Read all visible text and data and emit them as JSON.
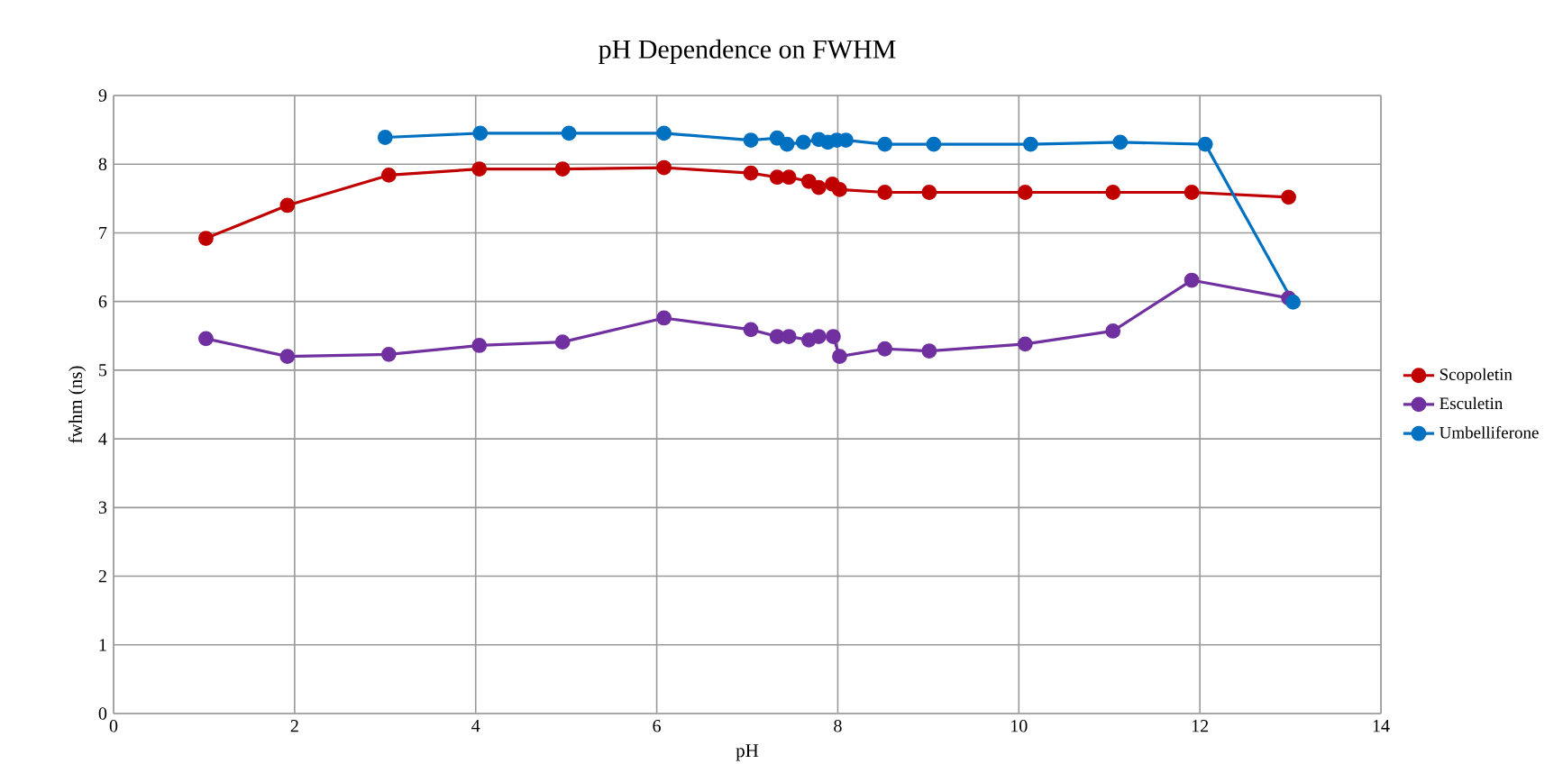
{
  "chart_data": {
    "type": "line",
    "title": "pH Dependence on FWHM",
    "xlabel": "pH",
    "ylabel": "fwhm (ns)",
    "xlim": [
      0,
      14
    ],
    "xticks": [
      0,
      2,
      4,
      6,
      8,
      10,
      12,
      14
    ],
    "ylim": [
      0,
      9
    ],
    "yticks": [
      0,
      1,
      2,
      3,
      4,
      5,
      6,
      7,
      8,
      9
    ],
    "grid": true,
    "legend": "right",
    "marker": "circle",
    "line_style": "solid",
    "series": [
      {
        "name": "Scopoletin",
        "color": "#c00000",
        "x": [
          1.02,
          1.92,
          3.04,
          4.04,
          4.96,
          6.08,
          7.04,
          7.33,
          7.46,
          7.68,
          7.79,
          7.9,
          7.94,
          8.02,
          8.52,
          9.01,
          10.07,
          11.04,
          11.91,
          12.98
        ],
        "values": [
          6.92,
          7.4,
          7.84,
          7.93,
          7.93,
          7.95,
          7.87,
          7.81,
          7.81,
          7.75,
          7.66,
          null,
          7.71,
          7.63,
          7.59,
          7.59,
          7.59,
          7.59,
          7.59,
          7.52
        ]
      },
      {
        "name": "Esculetin",
        "color": "#7030a0",
        "x": [
          1.02,
          1.92,
          3.04,
          4.04,
          4.96,
          6.08,
          7.04,
          7.33,
          7.46,
          7.68,
          7.79,
          7.89,
          7.95,
          8.02,
          8.52,
          9.01,
          10.07,
          11.04,
          11.91,
          12.98
        ],
        "values": [
          5.46,
          5.2,
          5.23,
          5.36,
          5.41,
          5.76,
          5.59,
          5.49,
          5.49,
          5.44,
          5.49,
          null,
          5.49,
          5.2,
          5.31,
          5.28,
          5.38,
          5.57,
          6.31,
          6.05
        ]
      },
      {
        "name": "Umbelliferone",
        "color": "#0070c0",
        "x": [
          3.0,
          4.05,
          5.03,
          6.08,
          7.04,
          7.33,
          7.44,
          7.62,
          7.79,
          7.89,
          7.99,
          8.09,
          8.52,
          9.06,
          10.13,
          11.12,
          12.06,
          13.03
        ],
        "values": [
          8.39,
          8.45,
          8.45,
          8.45,
          8.35,
          8.38,
          8.29,
          8.32,
          8.36,
          8.32,
          8.35,
          8.35,
          8.29,
          8.29,
          8.29,
          8.32,
          8.29,
          5.99
        ]
      }
    ]
  }
}
